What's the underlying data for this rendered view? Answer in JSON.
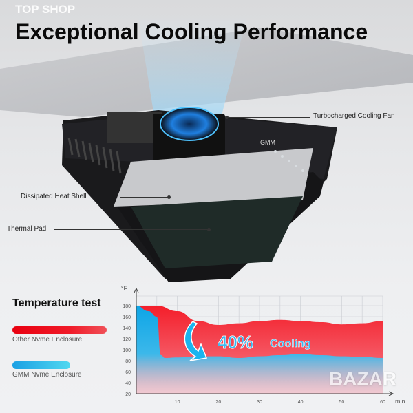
{
  "watermark_top": "TOP SHOP",
  "title": "Exceptional Cooling Performance",
  "callouts": {
    "fan": "Turbocharged Cooling Fan",
    "shell": "Dissipated Heat Shell",
    "pad": "Thermal Pad"
  },
  "device": {
    "brand_logo": "GMM"
  },
  "legend": {
    "title": "Temperature test",
    "items": [
      {
        "label": "Other Nvme Enclosure",
        "color": "#f0202a"
      },
      {
        "label": "GMM Nvme Enclosure",
        "color": "#19a9e6"
      }
    ]
  },
  "watermark_bottom": "BAZAR",
  "chart_data": {
    "type": "area",
    "ylabel": "°F",
    "xlabel": "min",
    "xlim": [
      0,
      60
    ],
    "ylim": [
      20,
      180
    ],
    "x_ticks": [
      10,
      20,
      30,
      40,
      50,
      60
    ],
    "y_ticks": [
      20,
      40,
      60,
      80,
      100,
      120,
      140,
      160,
      180
    ],
    "grid": true,
    "annotation": {
      "value": "40%",
      "text": "Cooling"
    },
    "series": [
      {
        "name": "Other Nvme Enclosure",
        "color": "#f0202a",
        "x": [
          0,
          5,
          10,
          15,
          20,
          25,
          30,
          35,
          40,
          45,
          50,
          55,
          60
        ],
        "y": [
          180,
          180,
          170,
          152,
          145,
          148,
          152,
          154,
          152,
          150,
          146,
          148,
          152
        ]
      },
      {
        "name": "GMM Nvme Enclosure",
        "color": "#19a9e6",
        "x": [
          0,
          3,
          5,
          6,
          7,
          10,
          15,
          20,
          25,
          30,
          35,
          40,
          45,
          50,
          55,
          60
        ],
        "y": [
          180,
          170,
          160,
          90,
          85,
          86,
          88,
          88,
          85,
          88,
          90,
          92,
          90,
          88,
          87,
          85
        ]
      }
    ]
  }
}
